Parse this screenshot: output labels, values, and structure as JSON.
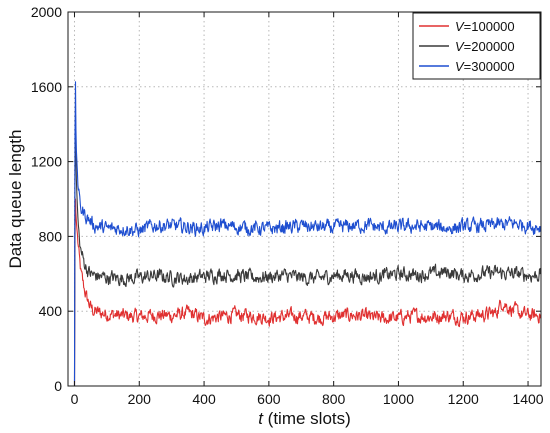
{
  "chart_data": {
    "type": "line",
    "title": "",
    "xlabel": {
      "italic": "t",
      "rest": " (time slots)"
    },
    "ylabel": "Data queue length",
    "xlim": [
      -20,
      1440
    ],
    "ylim": [
      0,
      2000
    ],
    "xticks": [
      0,
      200,
      400,
      600,
      800,
      1000,
      1200,
      1400
    ],
    "yticks": [
      0,
      400,
      800,
      1200,
      1600,
      2000
    ],
    "grid": true,
    "legend_position": "top-right",
    "series": [
      {
        "name": {
          "italic": "V",
          "rest": "=100000"
        },
        "color": "#e03030",
        "x": [
          0,
          2,
          5,
          10,
          15,
          20,
          30,
          40,
          50,
          60,
          80,
          100,
          150,
          200,
          250,
          300,
          350,
          400,
          450,
          500,
          550,
          600,
          650,
          700,
          750,
          800,
          850,
          900,
          950,
          1000,
          1050,
          1100,
          1150,
          1200,
          1250,
          1300,
          1320,
          1340,
          1360,
          1380,
          1400,
          1420,
          1440
        ],
        "y": [
          0,
          1050,
          900,
          780,
          680,
          600,
          520,
          460,
          420,
          400,
          390,
          385,
          375,
          370,
          380,
          375,
          390,
          360,
          370,
          380,
          375,
          365,
          370,
          375,
          365,
          370,
          380,
          370,
          360,
          365,
          375,
          370,
          375,
          370,
          380,
          390,
          450,
          420,
          400,
          385,
          380,
          375,
          380
        ]
      },
      {
        "name": {
          "italic": "V",
          "rest": "=200000"
        },
        "color": "#3a3a3a",
        "x": [
          0,
          2,
          5,
          10,
          15,
          20,
          30,
          40,
          50,
          60,
          80,
          100,
          150,
          200,
          250,
          300,
          350,
          400,
          450,
          500,
          550,
          600,
          650,
          700,
          750,
          800,
          850,
          900,
          950,
          1000,
          1050,
          1100,
          1150,
          1200,
          1250,
          1300,
          1350,
          1400,
          1420,
          1440
        ],
        "y": [
          0,
          1600,
          1150,
          900,
          780,
          720,
          660,
          620,
          600,
          590,
          585,
          580,
          575,
          580,
          590,
          580,
          575,
          585,
          600,
          590,
          580,
          585,
          590,
          580,
          575,
          590,
          595,
          585,
          590,
          600,
          595,
          600,
          610,
          590,
          600,
          605,
          600,
          595,
          590,
          600
        ]
      },
      {
        "name": {
          "italic": "V",
          "rest": "=300000"
        },
        "color": "#1f4fd0",
        "x": [
          0,
          2,
          5,
          10,
          15,
          20,
          30,
          40,
          50,
          60,
          80,
          100,
          150,
          200,
          250,
          300,
          350,
          400,
          450,
          500,
          550,
          600,
          650,
          700,
          750,
          800,
          850,
          900,
          950,
          1000,
          1050,
          1100,
          1150,
          1200,
          1250,
          1300,
          1350,
          1400,
          1420,
          1440
        ],
        "y": [
          0,
          1790,
          1300,
          1100,
          1000,
          950,
          920,
          900,
          880,
          860,
          850,
          840,
          845,
          830,
          860,
          855,
          850,
          840,
          860,
          850,
          845,
          840,
          850,
          855,
          850,
          845,
          855,
          860,
          845,
          850,
          855,
          850,
          845,
          850,
          855,
          860,
          870,
          860,
          850,
          855
        ]
      }
    ]
  }
}
